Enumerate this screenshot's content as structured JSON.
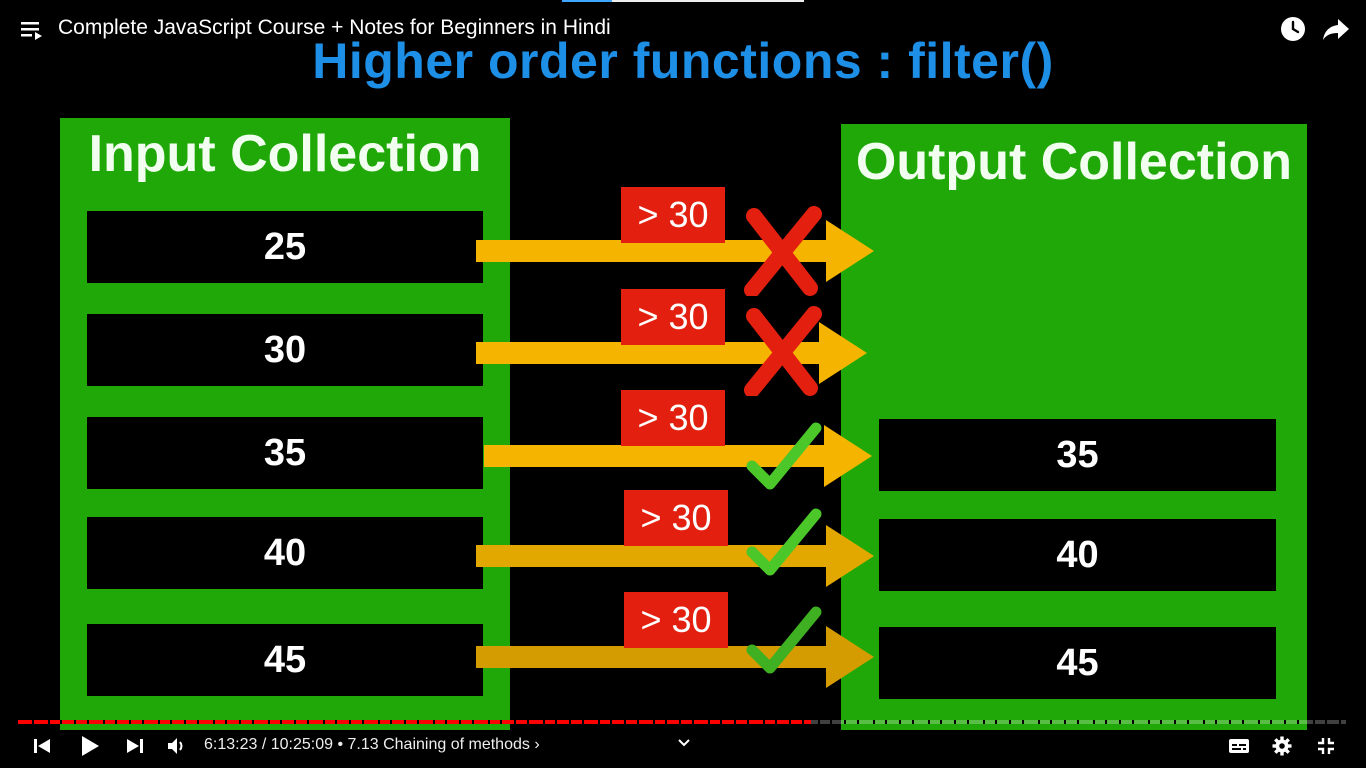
{
  "player": {
    "title": "Complete JavaScript Course + Notes for Beginners in Hindi",
    "current_time": "6:13:23",
    "time_separator": " / ",
    "duration": "10:25:09",
    "chapter_bullet": " • ",
    "chapter": "7.13 Chaining of methods",
    "chapter_chevron": "›",
    "progress_fraction": 0.597,
    "accent_color": "#ff0000"
  },
  "slide": {
    "heading": "Higher order functions : filter()",
    "input_title": "Input Collection",
    "output_title": "Output Collection",
    "input_values": [
      "25",
      "30",
      "35",
      "40",
      "45"
    ],
    "condition_label": "> 30",
    "results": [
      "rejected",
      "rejected",
      "passed",
      "passed",
      "passed"
    ],
    "output_values": [
      "35",
      "40",
      "45"
    ],
    "colors": {
      "heading": "#1e8fe6",
      "panel": "#20a808",
      "arrow": "#f5b400",
      "condition": "#e3200f",
      "cross": "#e3200f",
      "check": "#4cc72a"
    }
  }
}
